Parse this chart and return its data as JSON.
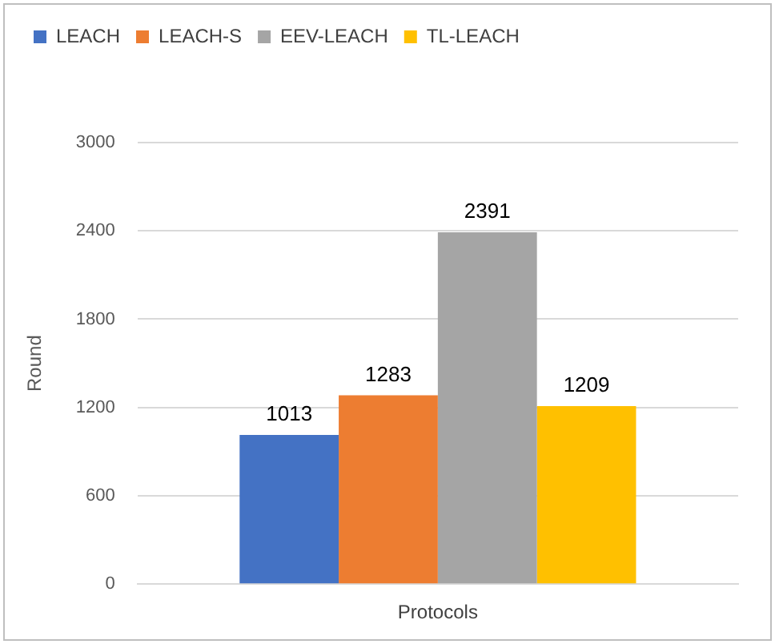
{
  "chart_data": {
    "type": "bar",
    "ylabel": "Round",
    "categories": [
      "Protocols"
    ],
    "series": [
      {
        "name": "LEACH",
        "color": "#4472c4",
        "values": [
          1013
        ]
      },
      {
        "name": "LEACH-S",
        "color": "#ed7d31",
        "values": [
          1283
        ]
      },
      {
        "name": "EEV-LEACH",
        "color": "#a5a5a5",
        "values": [
          2391
        ]
      },
      {
        "name": "TL-LEACH",
        "color": "#ffc000",
        "values": [
          1209
        ]
      }
    ],
    "ylim": [
      0,
      3000
    ],
    "yticks": [
      0,
      600,
      1200,
      1800,
      2400,
      3000
    ],
    "grid": "y",
    "legend": "top",
    "data_labels": true
  }
}
